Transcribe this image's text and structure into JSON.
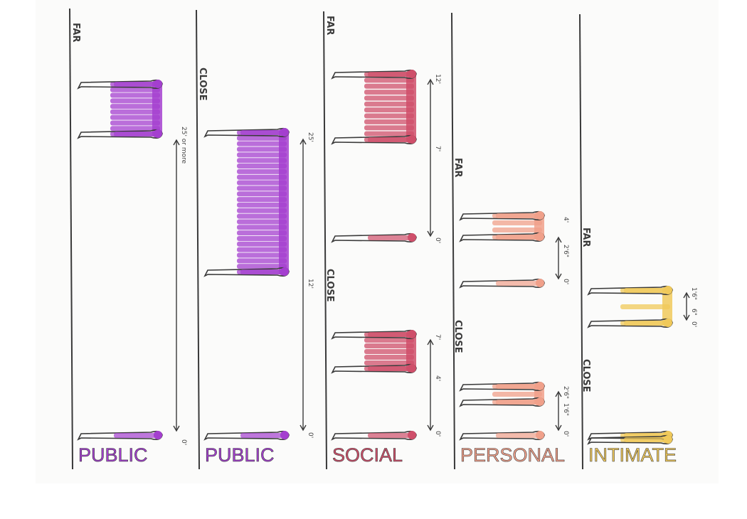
{
  "colors": {
    "public": "#a43fcf",
    "social": "#cf4f6a",
    "personal": "#f0a08a",
    "intimate": "#f0c95a",
    "line": "#3a3a3a"
  },
  "columns": [
    {
      "zone": "PUBLIC",
      "marks": [
        {
          "label": "FAR",
          "dist": "",
          "dist_ft": null,
          "stack": 10
        },
        {
          "label": "",
          "dist": "0'",
          "dist_ft": 0,
          "stack": 1
        }
      ],
      "ranges": [
        "25' or more"
      ]
    },
    {
      "zone": "PUBLIC",
      "marks": [
        {
          "label": "CLOSE",
          "dist": "25'",
          "dist_ft": 25,
          "stack": 26
        },
        {
          "label": "",
          "dist": "12'",
          "dist_ft": 12,
          "stack": 1
        },
        {
          "label": "",
          "dist": "0'",
          "dist_ft": 0,
          "stack": 1
        }
      ],
      "ranges": []
    },
    {
      "zone": "SOCIAL",
      "marks": [
        {
          "label": "FAR",
          "dist": "12'",
          "dist_ft": 12,
          "stack": 12
        },
        {
          "label": "",
          "dist": "7'",
          "dist_ft": 7,
          "stack": 1
        },
        {
          "label": "",
          "dist": "0'",
          "dist_ft": 0,
          "stack": 1
        },
        {
          "label": "CLOSE",
          "dist": "7'",
          "dist_ft": 7,
          "stack": 7
        },
        {
          "label": "",
          "dist": "4'",
          "dist_ft": 4,
          "stack": 1
        },
        {
          "label": "",
          "dist": "0'",
          "dist_ft": 0,
          "stack": 1
        }
      ],
      "ranges": []
    },
    {
      "zone": "PERSONAL",
      "marks": [
        {
          "label": "FAR",
          "dist": "4'",
          "dist_ft": 4,
          "stack": 4
        },
        {
          "label": "",
          "dist": "2'6\"",
          "dist_ft": 2.5,
          "stack": 1
        },
        {
          "label": "",
          "dist": "0'",
          "dist_ft": 0,
          "stack": 1
        },
        {
          "label": "CLOSE",
          "dist": "2'6\"",
          "dist_ft": 2.5,
          "stack": 3
        },
        {
          "label": "",
          "dist": "1'6\"",
          "dist_ft": 1.5,
          "stack": 1
        },
        {
          "label": "",
          "dist": "0'",
          "dist_ft": 0,
          "stack": 1
        }
      ],
      "ranges": []
    },
    {
      "zone": "INTIMATE",
      "marks": [
        {
          "label": "FAR",
          "dist": "1'6\"",
          "dist_ft": 1.5,
          "stack": 3
        },
        {
          "label": "",
          "dist": "6\"",
          "dist_ft": 0.5,
          "stack": 1
        },
        {
          "label": "",
          "dist": "0'",
          "dist_ft": 0,
          "stack": 1
        },
        {
          "label": "CLOSE",
          "dist": "",
          "dist_ft": 0,
          "stack": 2
        }
      ],
      "ranges": []
    }
  ]
}
